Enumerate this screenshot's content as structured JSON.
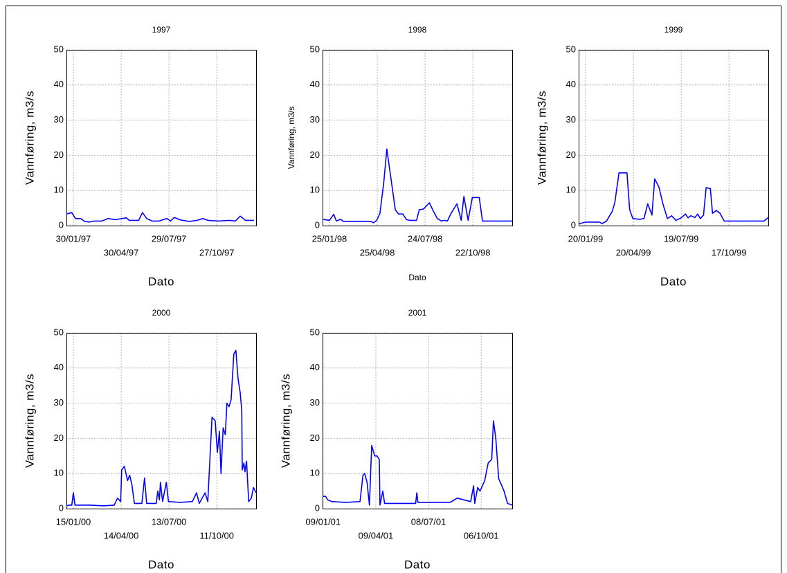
{
  "chart_data": [
    {
      "type": "line",
      "title": "1997",
      "x_label": "Dato",
      "y_label": "Vannføring, m3/s",
      "color": "#0000ff",
      "grid": true,
      "xlim": [
        "1997-01-17",
        "1998-01-09"
      ],
      "ylim": [
        0,
        50
      ],
      "yticks": [
        0,
        10,
        20,
        30,
        40,
        50
      ],
      "xticks": [
        {
          "value": "1997-01-30",
          "label": "30/01/97"
        },
        {
          "value": "1997-04-30",
          "label": "30/04/97"
        },
        {
          "value": "1997-07-29",
          "label": "29/07/97"
        },
        {
          "value": "1997-10-27",
          "label": "27/10/97"
        }
      ],
      "x": [
        "1997-01-17",
        "1997-01-27",
        "1997-02-03",
        "1997-02-13",
        "1997-02-20",
        "1997-03-01",
        "1997-03-10",
        "1997-03-25",
        "1997-04-05",
        "1997-04-20",
        "1997-05-01",
        "1997-05-10",
        "1997-05-15",
        "1997-05-25",
        "1997-06-02",
        "1997-06-09",
        "1997-06-17",
        "1997-06-27",
        "1997-07-10",
        "1997-07-25",
        "1997-08-01",
        "1997-08-08",
        "1997-08-20",
        "1997-09-05",
        "1997-09-20",
        "1997-10-01",
        "1997-10-10",
        "1997-10-30",
        "1997-11-20",
        "1997-12-01",
        "1997-12-10",
        "1997-12-20",
        "1998-01-05"
      ],
      "values": [
        3.3,
        3.7,
        2,
        2,
        1.2,
        1,
        1.3,
        1.3,
        2,
        1.7,
        2,
        2.2,
        1.5,
        1.5,
        1.5,
        3.7,
        2,
        1.3,
        1.3,
        2,
        1.3,
        2.3,
        1.6,
        1.2,
        1.5,
        2,
        1.5,
        1.3,
        1.5,
        1.3,
        2.7,
        1.5,
        1.5
      ]
    },
    {
      "type": "line",
      "title": "1998",
      "x_label": "Dato",
      "y_label": "Vannføring, m3/s",
      "color": "#0000ff",
      "grid": true,
      "xlim": [
        "1998-01-12",
        "1999-01-04"
      ],
      "ylim": [
        0,
        50
      ],
      "yticks": [
        0,
        10,
        20,
        30,
        40,
        50
      ],
      "xticks": [
        {
          "value": "1998-01-25",
          "label": "25/01/98"
        },
        {
          "value": "1998-04-25",
          "label": "25/04/98"
        },
        {
          "value": "1998-07-24",
          "label": "24/07/98"
        },
        {
          "value": "1998-10-22",
          "label": "22/10/98"
        }
      ],
      "x": [
        "1998-01-12",
        "1998-01-25",
        "1998-02-02",
        "1998-02-07",
        "1998-02-15",
        "1998-02-20",
        "1998-04-13",
        "1998-04-18",
        "1998-04-24",
        "1998-04-30",
        "1998-05-07",
        "1998-05-13",
        "1998-05-22",
        "1998-05-29",
        "1998-06-04",
        "1998-06-12",
        "1998-06-19",
        "1998-06-25",
        "1998-07-08",
        "1998-07-13",
        "1998-07-21",
        "1998-08-01",
        "1998-08-09",
        "1998-08-16",
        "1998-08-24",
        "1998-08-29",
        "1998-09-04",
        "1998-09-11",
        "1998-09-22",
        "1998-09-30",
        "1998-10-05",
        "1998-10-13",
        "1998-10-21",
        "1998-11-03",
        "1998-11-09",
        "1999-01-04"
      ],
      "values": [
        1.8,
        1.5,
        3.2,
        1.3,
        1.8,
        1.2,
        1.2,
        0.8,
        1.5,
        3.5,
        12,
        21.8,
        12,
        4.5,
        3.3,
        3.3,
        1.7,
        1.5,
        1.5,
        4.5,
        4.7,
        6.5,
        4,
        2,
        1.3,
        1.5,
        1.3,
        3.5,
        6.2,
        1.5,
        8.3,
        1.5,
        8,
        8,
        1.3,
        1.3
      ]
    },
    {
      "type": "line",
      "title": "1999",
      "x_label": "Dato",
      "y_label": "Vannføring, m3/s",
      "color": "#0000ff",
      "grid": true,
      "xlim": [
        "1999-01-07",
        "1999-12-30"
      ],
      "ylim": [
        0,
        50
      ],
      "yticks": [
        0,
        10,
        20,
        30,
        40,
        50
      ],
      "xticks": [
        {
          "value": "1999-01-20",
          "label": "20/01/99"
        },
        {
          "value": "1999-04-20",
          "label": "20/04/99"
        },
        {
          "value": "1999-07-19",
          "label": "19/07/99"
        },
        {
          "value": "1999-10-17",
          "label": "17/10/99"
        }
      ],
      "x": [
        "1999-01-07",
        "1999-01-20",
        "1999-02-15",
        "1999-02-20",
        "1999-02-28",
        "1999-03-11",
        "1999-03-16",
        "1999-03-24",
        "1999-04-08",
        "1999-04-13",
        "1999-04-19",
        "1999-05-02",
        "1999-05-10",
        "1999-05-17",
        "1999-05-25",
        "1999-05-30",
        "1999-06-07",
        "1999-06-15",
        "1999-06-23",
        "1999-07-01",
        "1999-07-09",
        "1999-07-19",
        "1999-07-27",
        "1999-08-01",
        "1999-08-06",
        "1999-08-14",
        "1999-08-19",
        "1999-08-24",
        "1999-08-30",
        "1999-09-04",
        "1999-09-12",
        "1999-09-16",
        "1999-09-23",
        "1999-09-30",
        "1999-10-08",
        "1999-12-22",
        "1999-12-30"
      ],
      "values": [
        0.5,
        1,
        1,
        0.6,
        1.2,
        4,
        6.5,
        15,
        15,
        4.5,
        2,
        1.8,
        2,
        6.2,
        3,
        13.3,
        11,
        6,
        2,
        2.8,
        1.5,
        2.2,
        3.3,
        2.2,
        2.8,
        2.3,
        3.3,
        2,
        3,
        10.8,
        10.5,
        3.5,
        4.3,
        3.5,
        1.3,
        1.3,
        2.3
      ]
    },
    {
      "type": "line",
      "title": "2000",
      "x_label": "Dato",
      "y_label": "Vannføring, m3/s",
      "color": "#0000ff",
      "grid": true,
      "xlim": [
        "2000-01-02",
        "2000-12-24"
      ],
      "ylim": [
        0,
        50
      ],
      "yticks": [
        0,
        10,
        20,
        30,
        40,
        50
      ],
      "xticks": [
        {
          "value": "2000-01-15",
          "label": "15/01/00"
        },
        {
          "value": "2000-04-14",
          "label": "14/04/00"
        },
        {
          "value": "2000-07-13",
          "label": "13/07/00"
        },
        {
          "value": "2000-10-11",
          "label": "11/10/00"
        }
      ],
      "x": [
        "2000-01-02",
        "2000-01-07",
        "2000-01-12",
        "2000-01-15",
        "2000-01-18",
        "2000-02-15",
        "2000-03-12",
        "2000-04-01",
        "2000-04-07",
        "2000-04-13",
        "2000-04-15",
        "2000-04-20",
        "2000-04-26",
        "2000-04-30",
        "2000-05-04",
        "2000-05-09",
        "2000-05-23",
        "2000-05-28",
        "2000-06-01",
        "2000-06-19",
        "2000-06-22",
        "2000-06-25",
        "2000-06-27",
        "2000-07-01",
        "2000-07-08",
        "2000-07-12",
        "2000-08-03",
        "2000-08-26",
        "2000-09-03",
        "2000-09-08",
        "2000-09-19",
        "2000-09-24",
        "2000-10-02",
        "2000-10-08",
        "2000-10-12",
        "2000-10-16",
        "2000-10-19",
        "2000-10-23",
        "2000-10-27",
        "2000-10-30",
        "2000-11-03",
        "2000-11-07",
        "2000-11-12",
        "2000-11-16",
        "2000-11-20",
        "2000-11-24",
        "2000-11-27",
        "2000-11-28",
        "2000-12-01",
        "2000-12-03",
        "2000-12-06",
        "2000-12-10",
        "2000-12-15",
        "2000-12-19",
        "2000-12-24"
      ],
      "values": [
        0.8,
        1,
        1,
        4.5,
        1,
        1,
        0.8,
        1,
        3,
        2,
        11,
        12,
        8,
        9.5,
        7,
        1.5,
        1.5,
        8.7,
        1.5,
        1.5,
        5,
        2.5,
        7.5,
        2,
        7.5,
        2,
        1.8,
        2,
        4.5,
        1.5,
        4.5,
        2,
        26,
        25,
        16,
        22,
        10,
        23,
        21,
        30,
        29,
        31,
        44,
        45,
        37,
        33,
        28,
        11,
        13,
        10.5,
        13.5,
        2,
        3,
        6,
        4.5
      ]
    },
    {
      "type": "line",
      "title": "2001",
      "x_label": "Dato",
      "y_label": "Vannføring, m3/s",
      "color": "#0000ff",
      "grid": true,
      "xlim": [
        "2001-01-08",
        "2001-11-28"
      ],
      "ylim": [
        0,
        50
      ],
      "yticks": [
        0,
        10,
        20,
        30,
        40,
        50
      ],
      "xticks": [
        {
          "value": "2001-01-09",
          "label": "09/01/01"
        },
        {
          "value": "2001-04-09",
          "label": "09/04/01"
        },
        {
          "value": "2001-07-08",
          "label": "08/07/01"
        },
        {
          "value": "2001-10-06",
          "label": "06/10/01"
        }
      ],
      "x": [
        "2001-01-08",
        "2001-01-13",
        "2001-01-17",
        "2001-01-24",
        "2001-02-17",
        "2001-03-13",
        "2001-03-18",
        "2001-03-21",
        "2001-03-25",
        "2001-03-29",
        "2001-04-02",
        "2001-04-07",
        "2001-04-11",
        "2001-04-15",
        "2001-04-16",
        "2001-04-21",
        "2001-04-24",
        "2001-06-16",
        "2001-06-18",
        "2001-06-20",
        "2001-08-14",
        "2001-08-26",
        "2001-09-18",
        "2001-09-23",
        "2001-09-25",
        "2001-09-30",
        "2001-10-04",
        "2001-10-12",
        "2001-10-18",
        "2001-10-24",
        "2001-10-27",
        "2001-10-31",
        "2001-11-05",
        "2001-11-09",
        "2001-11-14",
        "2001-11-20",
        "2001-11-28"
      ],
      "values": [
        3.5,
        3.5,
        2.5,
        2,
        1.8,
        2,
        9.5,
        10,
        7.5,
        1,
        18,
        15,
        15,
        14,
        1,
        5,
        1.5,
        1.5,
        4.5,
        1.8,
        1.8,
        3,
        2,
        6.5,
        1.5,
        6,
        5,
        8,
        13,
        14,
        25,
        20,
        8.5,
        7,
        5,
        1.5,
        1
      ]
    }
  ]
}
